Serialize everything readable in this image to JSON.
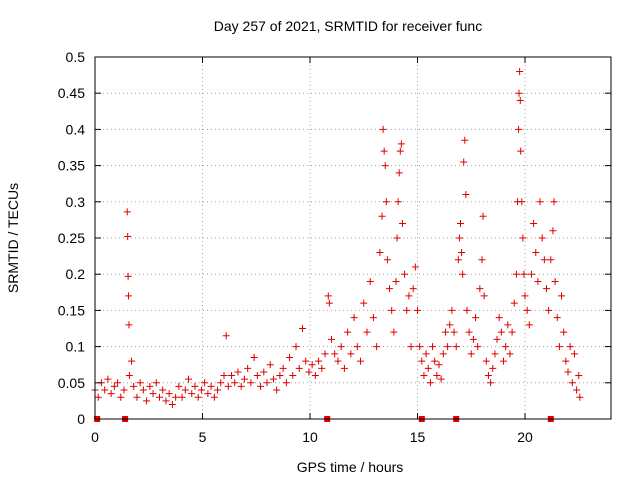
{
  "chart_data": {
    "type": "scatter",
    "title": "Day 257 of 2021, SRMTID for receiver func",
    "xlabel": "GPS time / hours",
    "ylabel": "SRMTID / TECUs",
    "xlim": [
      0,
      24
    ],
    "ylim": [
      0,
      0.5
    ],
    "grid": true,
    "marker": "+",
    "marker_color": "#e00000",
    "x_ticks": [
      0,
      5,
      10,
      15,
      20
    ],
    "x_tick_labels": [
      "0",
      "5",
      "10",
      "15",
      "20"
    ],
    "y_ticks": [
      0,
      0.05,
      0.1,
      0.15,
      0.2,
      0.25,
      0.3,
      0.35,
      0.4,
      0.45,
      0.5
    ],
    "y_tick_labels": [
      "0",
      "0.05",
      "0.1",
      "0.15",
      "0.2",
      "0.25",
      "0.3",
      "0.35",
      "0.4",
      "0.45",
      "0.5"
    ],
    "gap_markers_x": [
      0.1,
      1.4,
      10.8,
      15.2,
      16.8,
      21.2
    ],
    "series": [
      {
        "name": "SRMTID",
        "points": [
          [
            0.0,
            0.04
          ],
          [
            0.15,
            0.03
          ],
          [
            0.3,
            0.05
          ],
          [
            0.45,
            0.04
          ],
          [
            0.6,
            0.055
          ],
          [
            0.75,
            0.035
          ],
          [
            0.9,
            0.045
          ],
          [
            1.05,
            0.05
          ],
          [
            1.2,
            0.03
          ],
          [
            1.35,
            0.04
          ],
          [
            1.5,
            0.286
          ],
          [
            1.52,
            0.252
          ],
          [
            1.54,
            0.197
          ],
          [
            1.56,
            0.17
          ],
          [
            1.58,
            0.13
          ],
          [
            1.6,
            0.06
          ],
          [
            1.7,
            0.08
          ],
          [
            1.8,
            0.045
          ],
          [
            1.95,
            0.03
          ],
          [
            2.1,
            0.05
          ],
          [
            2.25,
            0.04
          ],
          [
            2.4,
            0.025
          ],
          [
            2.55,
            0.045
          ],
          [
            2.7,
            0.035
          ],
          [
            2.85,
            0.05
          ],
          [
            3.0,
            0.03
          ],
          [
            3.15,
            0.04
          ],
          [
            3.3,
            0.025
          ],
          [
            3.45,
            0.035
          ],
          [
            3.6,
            0.02
          ],
          [
            3.75,
            0.03
          ],
          [
            3.9,
            0.045
          ],
          [
            4.05,
            0.03
          ],
          [
            4.2,
            0.04
          ],
          [
            4.35,
            0.055
          ],
          [
            4.5,
            0.035
          ],
          [
            4.65,
            0.045
          ],
          [
            4.8,
            0.03
          ],
          [
            4.95,
            0.04
          ],
          [
            5.1,
            0.05
          ],
          [
            5.25,
            0.035
          ],
          [
            5.4,
            0.045
          ],
          [
            5.55,
            0.03
          ],
          [
            5.7,
            0.04
          ],
          [
            5.85,
            0.05
          ],
          [
            6.0,
            0.06
          ],
          [
            6.1,
            0.115
          ],
          [
            6.2,
            0.045
          ],
          [
            6.35,
            0.06
          ],
          [
            6.5,
            0.05
          ],
          [
            6.65,
            0.065
          ],
          [
            6.8,
            0.045
          ],
          [
            6.95,
            0.055
          ],
          [
            7.1,
            0.07
          ],
          [
            7.25,
            0.05
          ],
          [
            7.4,
            0.085
          ],
          [
            7.55,
            0.06
          ],
          [
            7.7,
            0.045
          ],
          [
            7.85,
            0.065
          ],
          [
            8.0,
            0.05
          ],
          [
            8.15,
            0.075
          ],
          [
            8.3,
            0.055
          ],
          [
            8.45,
            0.04
          ],
          [
            8.6,
            0.06
          ],
          [
            8.75,
            0.07
          ],
          [
            8.9,
            0.05
          ],
          [
            9.05,
            0.085
          ],
          [
            9.2,
            0.06
          ],
          [
            9.35,
            0.1
          ],
          [
            9.5,
            0.07
          ],
          [
            9.65,
            0.125
          ],
          [
            9.8,
            0.08
          ],
          [
            9.95,
            0.065
          ],
          [
            10.1,
            0.075
          ],
          [
            10.25,
            0.06
          ],
          [
            10.4,
            0.08
          ],
          [
            10.55,
            0.07
          ],
          [
            10.7,
            0.09
          ],
          [
            10.85,
            0.17
          ],
          [
            10.9,
            0.16
          ],
          [
            11.0,
            0.11
          ],
          [
            11.15,
            0.09
          ],
          [
            11.3,
            0.08
          ],
          [
            11.45,
            0.1
          ],
          [
            11.6,
            0.07
          ],
          [
            11.75,
            0.12
          ],
          [
            11.9,
            0.09
          ],
          [
            12.05,
            0.14
          ],
          [
            12.2,
            0.1
          ],
          [
            12.35,
            0.08
          ],
          [
            12.5,
            0.16
          ],
          [
            12.65,
            0.12
          ],
          [
            12.8,
            0.19
          ],
          [
            12.95,
            0.14
          ],
          [
            13.1,
            0.1
          ],
          [
            13.25,
            0.23
          ],
          [
            13.35,
            0.28
          ],
          [
            13.4,
            0.4
          ],
          [
            13.45,
            0.37
          ],
          [
            13.5,
            0.35
          ],
          [
            13.55,
            0.3
          ],
          [
            13.6,
            0.22
          ],
          [
            13.7,
            0.18
          ],
          [
            13.8,
            0.15
          ],
          [
            13.9,
            0.12
          ],
          [
            14.0,
            0.19
          ],
          [
            14.05,
            0.25
          ],
          [
            14.1,
            0.3
          ],
          [
            14.15,
            0.34
          ],
          [
            14.2,
            0.37
          ],
          [
            14.25,
            0.38
          ],
          [
            14.3,
            0.27
          ],
          [
            14.4,
            0.2
          ],
          [
            14.5,
            0.15
          ],
          [
            14.6,
            0.17
          ],
          [
            14.7,
            0.1
          ],
          [
            14.8,
            0.18
          ],
          [
            14.9,
            0.21
          ],
          [
            15.0,
            0.15
          ],
          [
            15.1,
            0.1
          ],
          [
            15.2,
            0.08
          ],
          [
            15.3,
            0.06
          ],
          [
            15.4,
            0.09
          ],
          [
            15.5,
            0.07
          ],
          [
            15.6,
            0.05
          ],
          [
            15.7,
            0.1
          ],
          [
            15.8,
            0.08
          ],
          [
            15.9,
            0.06
          ],
          [
            16.0,
            0.075
          ],
          [
            16.1,
            0.055
          ],
          [
            16.2,
            0.09
          ],
          [
            16.3,
            0.12
          ],
          [
            16.4,
            0.1
          ],
          [
            16.5,
            0.13
          ],
          [
            16.6,
            0.15
          ],
          [
            16.7,
            0.12
          ],
          [
            16.8,
            0.1
          ],
          [
            16.9,
            0.22
          ],
          [
            16.95,
            0.25
          ],
          [
            17.0,
            0.27
          ],
          [
            17.05,
            0.23
          ],
          [
            17.1,
            0.2
          ],
          [
            17.15,
            0.355
          ],
          [
            17.2,
            0.385
          ],
          [
            17.25,
            0.31
          ],
          [
            17.3,
            0.15
          ],
          [
            17.4,
            0.12
          ],
          [
            17.5,
            0.09
          ],
          [
            17.6,
            0.11
          ],
          [
            17.7,
            0.14
          ],
          [
            17.8,
            0.1
          ],
          [
            17.9,
            0.18
          ],
          [
            18.0,
            0.22
          ],
          [
            18.05,
            0.28
          ],
          [
            18.1,
            0.17
          ],
          [
            18.2,
            0.08
          ],
          [
            18.3,
            0.06
          ],
          [
            18.4,
            0.05
          ],
          [
            18.5,
            0.07
          ],
          [
            18.6,
            0.09
          ],
          [
            18.7,
            0.11
          ],
          [
            18.8,
            0.14
          ],
          [
            18.9,
            0.12
          ],
          [
            19.0,
            0.08
          ],
          [
            19.1,
            0.1
          ],
          [
            19.2,
            0.13
          ],
          [
            19.3,
            0.09
          ],
          [
            19.4,
            0.12
          ],
          [
            19.5,
            0.16
          ],
          [
            19.6,
            0.2
          ],
          [
            19.65,
            0.3
          ],
          [
            19.7,
            0.4
          ],
          [
            19.72,
            0.45
          ],
          [
            19.75,
            0.48
          ],
          [
            19.78,
            0.44
          ],
          [
            19.8,
            0.37
          ],
          [
            19.85,
            0.3
          ],
          [
            19.9,
            0.25
          ],
          [
            19.95,
            0.2
          ],
          [
            20.0,
            0.17
          ],
          [
            20.1,
            0.15
          ],
          [
            20.2,
            0.13
          ],
          [
            20.3,
            0.2
          ],
          [
            20.4,
            0.27
          ],
          [
            20.5,
            0.23
          ],
          [
            20.6,
            0.19
          ],
          [
            20.7,
            0.3
          ],
          [
            20.8,
            0.25
          ],
          [
            20.9,
            0.22
          ],
          [
            21.0,
            0.18
          ],
          [
            21.1,
            0.15
          ],
          [
            21.2,
            0.22
          ],
          [
            21.3,
            0.26
          ],
          [
            21.35,
            0.3
          ],
          [
            21.4,
            0.19
          ],
          [
            21.5,
            0.14
          ],
          [
            21.6,
            0.1
          ],
          [
            21.7,
            0.17
          ],
          [
            21.8,
            0.12
          ],
          [
            21.9,
            0.08
          ],
          [
            22.0,
            0.065
          ],
          [
            22.1,
            0.1
          ],
          [
            22.2,
            0.05
          ],
          [
            22.3,
            0.09
          ],
          [
            22.4,
            0.04
          ],
          [
            22.5,
            0.06
          ],
          [
            22.55,
            0.03
          ]
        ]
      }
    ]
  }
}
